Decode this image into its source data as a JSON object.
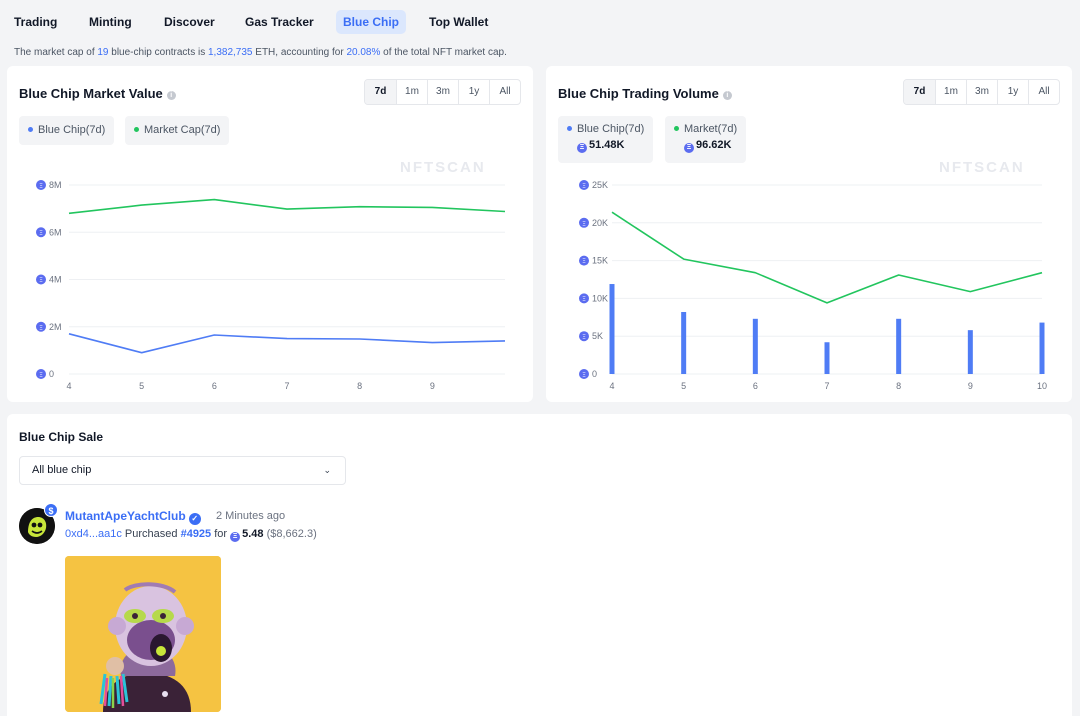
{
  "nav": {
    "items": [
      {
        "label": "Trading"
      },
      {
        "label": "Minting"
      },
      {
        "label": "Discover"
      },
      {
        "label": "Gas Tracker"
      },
      {
        "label": "Blue Chip"
      },
      {
        "label": "Top Wallet"
      }
    ],
    "active": "Blue Chip"
  },
  "summary": {
    "prefix": "The market cap of ",
    "contracts": "19",
    "middle": " blue-chip contracts is ",
    "market_cap": "1,382,735",
    "unit": " ETH, accounting for ",
    "percent": "20.08%",
    "suffix": " of the total NFT market cap."
  },
  "market_value": {
    "title": "Blue Chip Market Value",
    "ranges": [
      "7d",
      "1m",
      "3m",
      "1y",
      "All"
    ],
    "active_range": "7d",
    "legend": [
      {
        "label": "Blue Chip(7d)",
        "color": "#4f7cf5"
      },
      {
        "label": "Market Cap(7d)",
        "color": "#22c55e"
      }
    ],
    "watermark": "NFTSCAN"
  },
  "trading_volume": {
    "title": "Blue Chip Trading Volume",
    "ranges": [
      "7d",
      "1m",
      "3m",
      "1y",
      "All"
    ],
    "active_range": "7d",
    "legend": [
      {
        "label": "Blue Chip(7d)",
        "value": "51.48K",
        "color": "#4f7cf5"
      },
      {
        "label": "Market(7d)",
        "value": "96.62K",
        "color": "#22c55e"
      }
    ],
    "watermark": "NFTSCAN"
  },
  "chart_data": [
    {
      "type": "line",
      "x": [
        4,
        5,
        6,
        7,
        8,
        9,
        10
      ],
      "x_tick_labels": [
        "4",
        "5",
        "6",
        "7",
        "8",
        "9",
        ""
      ],
      "y_ticks": [
        0,
        2000000,
        4000000,
        6000000,
        8000000
      ],
      "y_tick_labels": [
        "0",
        "2M",
        "4M",
        "6M",
        "8M"
      ],
      "ylim": [
        0,
        8000000
      ],
      "series": [
        {
          "name": "Blue Chip(7d)",
          "color": "#4f7cf5",
          "values": [
            1700000,
            900000,
            1650000,
            1500000,
            1480000,
            1330000,
            1400000
          ]
        },
        {
          "name": "Market Cap(7d)",
          "color": "#22c55e",
          "values": [
            6800000,
            7150000,
            7380000,
            6980000,
            7080000,
            7050000,
            6880000
          ]
        }
      ],
      "grid": true,
      "legend_position": "top-left"
    },
    {
      "type": "bar+line",
      "x": [
        4,
        5,
        6,
        7,
        8,
        9,
        10
      ],
      "x_tick_labels": [
        "4",
        "5",
        "6",
        "7",
        "8",
        "9",
        "10"
      ],
      "y_ticks": [
        0,
        5000,
        10000,
        15000,
        20000,
        25000
      ],
      "y_tick_labels": [
        "0",
        "5K",
        "10K",
        "15K",
        "20K",
        "25K"
      ],
      "ylim": [
        0,
        25000
      ],
      "series": [
        {
          "name": "Blue Chip(7d)",
          "kind": "bar",
          "color": "#4f7cf5",
          "values": [
            11900,
            8200,
            7300,
            4200,
            7300,
            5800,
            6800
          ]
        },
        {
          "name": "Market(7d)",
          "kind": "line",
          "color": "#22c55e",
          "values": [
            21400,
            15200,
            13400,
            9400,
            13100,
            10900,
            13400
          ]
        }
      ],
      "grid": true,
      "legend_position": "top-left"
    }
  ],
  "sale": {
    "title": "Blue Chip Sale",
    "filter_value": "All blue chip",
    "badge": "$",
    "verified_mark": "✓",
    "collection": "MutantApeYachtClub",
    "time_ago": "2 Minutes ago",
    "buyer": "0xd4...aa1c",
    "action": " Purchased ",
    "token": "#4925",
    "for_word": " for ",
    "price": "5.48",
    "usd": " ($8,662.3)"
  }
}
